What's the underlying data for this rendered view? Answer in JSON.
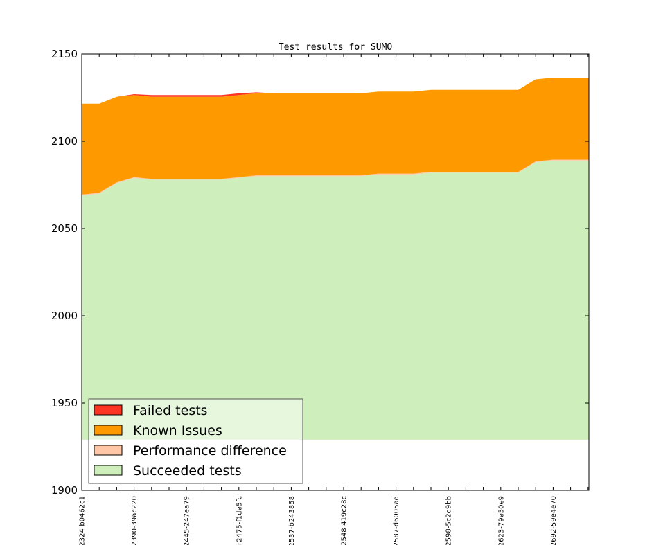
{
  "chart_data": {
    "type": "area",
    "title": "Test results for SUMO",
    "xlabel": "",
    "ylabel": "",
    "ylim": [
      1900,
      2150
    ],
    "yticks": [
      1900,
      1950,
      2000,
      2050,
      2100,
      2150
    ],
    "x_tick_labels": [
      {
        "index": 0,
        "label": "2324-b0462c1"
      },
      {
        "index": 3,
        "label": "2390-39ac220"
      },
      {
        "index": 6,
        "label": "2445-247ea79"
      },
      {
        "index": 9,
        "label": "r2475-f1de5fc"
      },
      {
        "index": 12,
        "label": "2537-b243858"
      },
      {
        "index": 15,
        "label": "2548-419c28c"
      },
      {
        "index": 18,
        "label": "2587-d6005ad"
      },
      {
        "index": 21,
        "label": "2598-5c2d9bb"
      },
      {
        "index": 24,
        "label": "2623-79e50e9"
      },
      {
        "index": 27,
        "label": "2692-59e4e70"
      }
    ],
    "n_points": 30,
    "baseline": 1929,
    "series": [
      {
        "name": "Succeeded tests",
        "color": "#ceeebc",
        "values": [
          2069,
          2070,
          2076,
          2079,
          2078,
          2078,
          2078,
          2078,
          2078,
          2079,
          2080,
          2080,
          2080,
          2080,
          2080,
          2080,
          2080,
          2081,
          2081,
          2081,
          2082,
          2082,
          2082,
          2082,
          2082,
          2082,
          2088,
          2089,
          2089,
          2089
        ]
      },
      {
        "name": "Performance difference",
        "color": "#ffc7a5",
        "values": [
          0.5,
          0.5,
          0.5,
          0.5,
          0.5,
          0.5,
          0.5,
          0.5,
          0.5,
          0.5,
          0.5,
          0.5,
          0.5,
          0.5,
          0.5,
          0.5,
          0.5,
          0.5,
          0.5,
          0.5,
          0.5,
          0.5,
          0.5,
          0.5,
          0.5,
          0.5,
          0.5,
          0.5,
          0.5,
          0.5
        ]
      },
      {
        "name": "Known Issues",
        "color": "#ff9900",
        "values": [
          52,
          51,
          49,
          47,
          47,
          47,
          47,
          47,
          47,
          47,
          47,
          47,
          47,
          47,
          47,
          47,
          47,
          47,
          47,
          47,
          47,
          47,
          47,
          47,
          47,
          47,
          47,
          47,
          47,
          47
        ]
      },
      {
        "name": "Failed tests",
        "color": "#ff3322",
        "values": [
          0,
          0,
          0,
          0.5,
          1,
          1,
          1,
          1,
          1,
          1,
          0.5,
          0,
          0,
          0,
          0,
          0,
          0,
          0,
          0,
          0,
          0,
          0,
          0,
          0,
          0,
          0,
          0,
          0,
          0,
          0
        ]
      }
    ],
    "legend": {
      "placement": "lower-left",
      "order": [
        "Failed tests",
        "Known Issues",
        "Performance difference",
        "Succeeded tests"
      ]
    }
  }
}
